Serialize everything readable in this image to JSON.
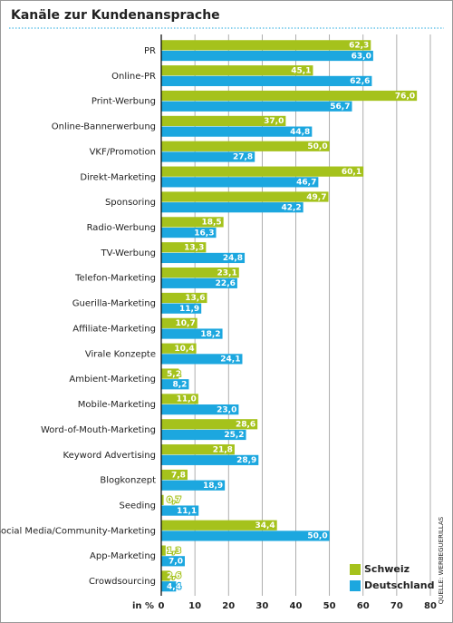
{
  "chart_data": {
    "type": "hbar",
    "title": "Kanäle zur Kundenansprache",
    "x_label": "in %",
    "source": "QUELLE: WERBEGUERILLAS",
    "categories": [
      "PR",
      "Online-PR",
      "Print-Werbung",
      "Online-Bannerwerbung",
      "VKF/Promotion",
      "Direkt-Marketing",
      "Sponsoring",
      "Radio-Werbung",
      "TV-Werbung",
      "Telefon-Marketing",
      "Guerilla-Marketing",
      "Affiliate-Marketing",
      "Virale Konzepte",
      "Ambient-Marketing",
      "Mobile-Marketing",
      "Word-of-Mouth-Marketing",
      "Keyword Advertising",
      "Blogkonzept",
      "Seeding",
      "Social Media/Community-Marketing",
      "App-Marketing",
      "Crowdsourcing"
    ],
    "series": [
      {
        "name": "Schweiz",
        "color": "#a5c21c",
        "values": [
          62.3,
          45.1,
          76.0,
          37.0,
          50.0,
          60.1,
          49.7,
          18.5,
          13.3,
          23.1,
          13.6,
          10.7,
          10.4,
          5.2,
          11.0,
          28.6,
          21.8,
          7.8,
          0.7,
          34.4,
          1.3,
          2.6
        ],
        "value_labels": [
          "62,3",
          "45,1",
          "76,0",
          "37,0",
          "50,0",
          "60,1",
          "49,7",
          "18,5",
          "13,3",
          "23,1",
          "13,6",
          "10,7",
          "10,4",
          "5,2",
          "11,0",
          "28,6",
          "21,8",
          "7,8",
          "0,7",
          "34,4",
          "1,3",
          "2,6"
        ]
      },
      {
        "name": "Deutschland",
        "color": "#1ca7df",
        "values": [
          63.0,
          62.6,
          56.7,
          44.8,
          27.8,
          46.7,
          42.2,
          16.3,
          24.8,
          22.6,
          11.9,
          18.2,
          24.1,
          8.2,
          23.0,
          25.2,
          28.9,
          18.9,
          11.1,
          50.0,
          7.0,
          4.4
        ],
        "value_labels": [
          "63,0",
          "62,6",
          "56,7",
          "44,8",
          "27,8",
          "46,7",
          "42,2",
          "16,3",
          "24,8",
          "22,6",
          "11,9",
          "18,2",
          "24,1",
          "8,2",
          "23,0",
          "25,2",
          "28,9",
          "18,9",
          "11,1",
          "50,0",
          "7,0",
          "4,4"
        ]
      }
    ],
    "xlim": [
      0,
      80
    ],
    "xticks": [
      0,
      10,
      20,
      30,
      40,
      50,
      60,
      70,
      80
    ],
    "grid": true,
    "legend": "lower right"
  }
}
